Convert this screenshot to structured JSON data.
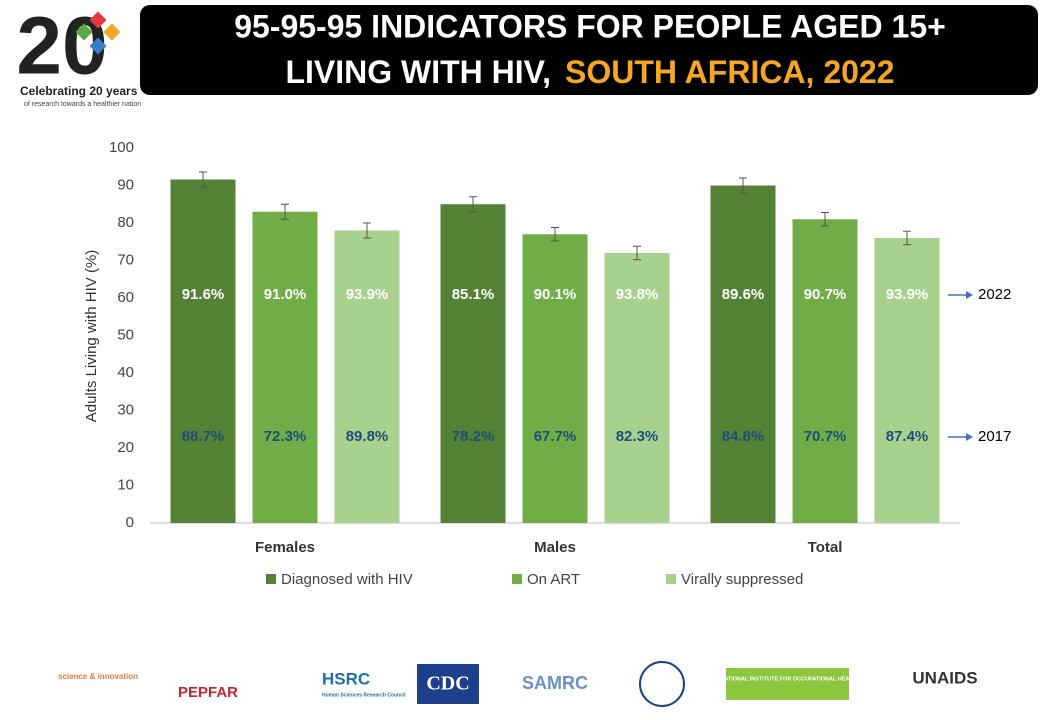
{
  "header": {
    "line1": "95-95-95 INDICATORS FOR PEOPLE AGED 15+",
    "line2": "LIVING WITH HIV,",
    "highlight": "SOUTH AFRICA, 2022"
  },
  "logo": {
    "number": "20",
    "caption": "Celebrating 20 years",
    "tagline": "of research towards a healthier nation"
  },
  "chart_data": {
    "type": "bar",
    "y_label": "Adults Living with HIV (%)",
    "categories": [
      "Females",
      "Males",
      "Total"
    ],
    "ylim": [
      0,
      100
    ],
    "yticks": [
      0,
      10,
      20,
      30,
      40,
      50,
      60,
      70,
      80,
      90,
      100
    ],
    "legend_position": "bottom",
    "series": [
      {
        "name": "Diagnosed with HIV",
        "color": "#548235",
        "values": [
          91.6,
          85,
          90
        ],
        "errors": [
          2,
          2,
          2
        ]
      },
      {
        "name": "On ART",
        "color": "#70ad47",
        "values": [
          83,
          77,
          81
        ],
        "errors": [
          2,
          1.8,
          1.8
        ]
      },
      {
        "name": "Virally suppressed",
        "color": "#a9d18e",
        "values": [
          78,
          72,
          76
        ],
        "errors": [
          2,
          1.8,
          1.8
        ]
      }
    ],
    "annotation_rows": [
      {
        "name": "2022",
        "color": "#ffffff",
        "labels": [
          "91.6%",
          "91.0%",
          "93.9%",
          "85.1%",
          "90.1%",
          "93.8%",
          "89.6%",
          "90.7%",
          "93.9%"
        ]
      },
      {
        "name": "2017",
        "color": "#1f4e79",
        "labels": [
          "88.7%",
          "72.3%",
          "89.8%",
          "78.2%",
          "67.7%",
          "82.3%",
          "84.8%",
          "70.7%",
          "87.4%"
        ]
      }
    ]
  },
  "footer_logos": [
    "science & innovation",
    "PEPFAR",
    "HSRC",
    "Human Sciences Research Council",
    "CDC",
    "SAMRC",
    "NATIONAL INSTITUTE FOR OCCUPATIONAL HEALTH",
    "UNAIDS"
  ]
}
